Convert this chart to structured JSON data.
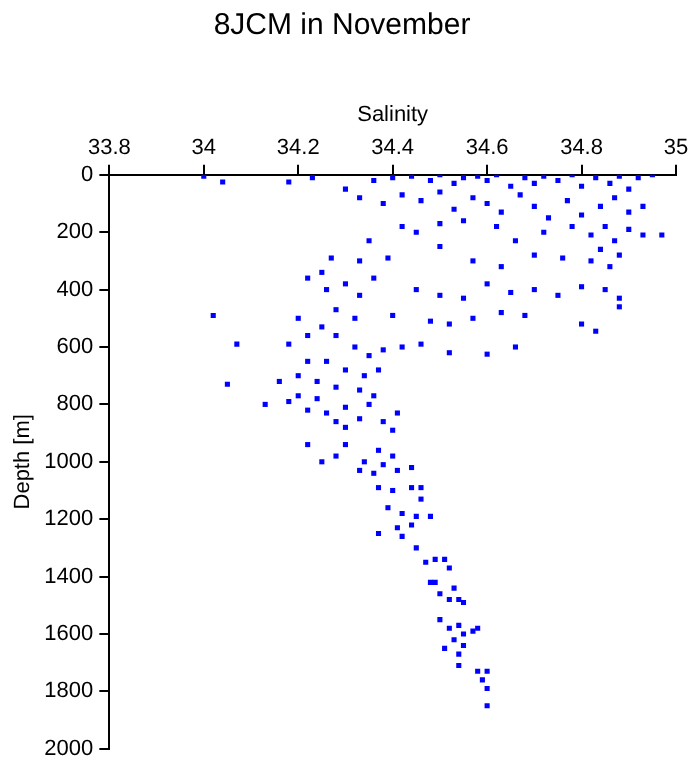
{
  "chart_data": {
    "type": "scatter",
    "title": "8JCM in November",
    "xlabel": "Salinity",
    "ylabel": "Depth [m]",
    "xlim": [
      33.8,
      35
    ],
    "xticks": [
      33.8,
      34,
      34.2,
      34.4,
      34.6,
      34.8,
      35
    ],
    "ylim": [
      2000,
      0
    ],
    "yticks": [
      0,
      200,
      400,
      600,
      800,
      1000,
      1200,
      1400,
      1600,
      1800,
      2000
    ],
    "grid": false,
    "legend": false,
    "marker": "square",
    "series": [
      {
        "color": "#0000ff",
        "x": [
          34.0,
          34.04,
          34.18,
          34.23,
          34.3,
          34.36,
          34.4,
          34.44,
          34.48,
          34.5,
          34.53,
          34.55,
          34.58,
          34.6,
          34.62,
          34.65,
          34.68,
          34.7,
          34.72,
          34.75,
          34.78,
          34.8,
          34.83,
          34.86,
          34.88,
          34.92,
          34.95,
          34.9,
          34.33,
          34.38,
          34.42,
          34.46,
          34.5,
          34.53,
          34.57,
          34.6,
          34.63,
          34.67,
          34.7,
          34.73,
          34.77,
          34.8,
          34.84,
          34.87,
          34.9,
          34.93,
          34.42,
          34.45,
          34.5,
          34.55,
          34.62,
          34.66,
          34.72,
          34.78,
          34.82,
          34.85,
          34.87,
          34.9,
          34.93,
          34.97,
          34.84,
          34.88,
          34.82,
          34.86,
          34.35,
          34.39,
          34.33,
          34.5,
          34.57,
          34.63,
          34.7,
          34.76,
          34.27,
          34.25,
          34.3,
          34.26,
          34.33,
          34.22,
          34.36,
          34.45,
          34.5,
          34.55,
          34.6,
          34.65,
          34.7,
          34.75,
          34.8,
          34.85,
          34.88,
          34.88,
          34.28,
          34.32,
          34.4,
          34.48,
          34.52,
          34.57,
          34.63,
          34.68,
          34.8,
          34.83,
          34.02,
          34.2,
          34.25,
          34.07,
          34.18,
          34.22,
          34.28,
          34.32,
          34.35,
          34.38,
          34.42,
          34.46,
          34.52,
          34.6,
          34.66,
          34.22,
          34.26,
          34.3,
          34.34,
          34.37,
          34.2,
          34.16,
          34.24,
          34.28,
          34.33,
          34.05,
          34.13,
          34.18,
          34.2,
          34.24,
          34.36,
          34.22,
          34.26,
          34.3,
          34.35,
          34.28,
          34.33,
          34.38,
          34.41,
          34.3,
          34.4,
          34.22,
          34.3,
          34.37,
          34.4,
          34.25,
          34.28,
          34.34,
          34.38,
          34.33,
          34.36,
          34.41,
          34.44,
          34.37,
          34.4,
          34.44,
          34.46,
          34.39,
          34.42,
          34.45,
          34.48,
          34.46,
          34.37,
          34.41,
          34.44,
          34.42,
          34.45,
          34.47,
          34.49,
          34.51,
          34.52,
          34.48,
          34.49,
          34.5,
          34.52,
          34.53,
          34.54,
          34.55,
          34.5,
          34.52,
          34.54,
          34.55,
          34.57,
          34.58,
          34.53,
          34.55,
          34.51,
          34.54,
          34.54,
          34.58,
          34.6,
          34.59,
          34.6,
          34.6
        ],
        "values": [
          5,
          25,
          25,
          10,
          50,
          20,
          10,
          5,
          20,
          0,
          30,
          10,
          5,
          20,
          0,
          40,
          10,
          30,
          5,
          20,
          0,
          40,
          10,
          30,
          5,
          10,
          0,
          50,
          80,
          100,
          70,
          90,
          60,
          120,
          80,
          100,
          130,
          70,
          110,
          150,
          90,
          140,
          110,
          80,
          130,
          110,
          180,
          200,
          170,
          160,
          180,
          230,
          200,
          180,
          210,
          180,
          230,
          190,
          210,
          210,
          260,
          280,
          300,
          320,
          230,
          290,
          300,
          250,
          300,
          320,
          280,
          290,
          290,
          340,
          380,
          400,
          420,
          360,
          360,
          400,
          420,
          430,
          380,
          410,
          400,
          420,
          390,
          400,
          430,
          460,
          470,
          500,
          490,
          510,
          520,
          500,
          480,
          490,
          520,
          545,
          490,
          500,
          530,
          590,
          590,
          560,
          560,
          600,
          630,
          610,
          600,
          590,
          620,
          625,
          600,
          650,
          650,
          680,
          700,
          680,
          700,
          720,
          720,
          740,
          750,
          730,
          800,
          790,
          770,
          780,
          770,
          820,
          830,
          810,
          800,
          860,
          850,
          860,
          830,
          880,
          890,
          940,
          940,
          960,
          980,
          1000,
          980,
          1000,
          1010,
          1030,
          1040,
          1030,
          1020,
          1090,
          1100,
          1090,
          1090,
          1160,
          1180,
          1190,
          1190,
          1130,
          1250,
          1230,
          1220,
          1260,
          1300,
          1350,
          1340,
          1340,
          1370,
          1420,
          1420,
          1460,
          1480,
          1440,
          1480,
          1490,
          1550,
          1580,
          1570,
          1600,
          1590,
          1580,
          1620,
          1640,
          1650,
          1670,
          1710,
          1730,
          1730,
          1760,
          1790,
          1850
        ]
      }
    ]
  }
}
